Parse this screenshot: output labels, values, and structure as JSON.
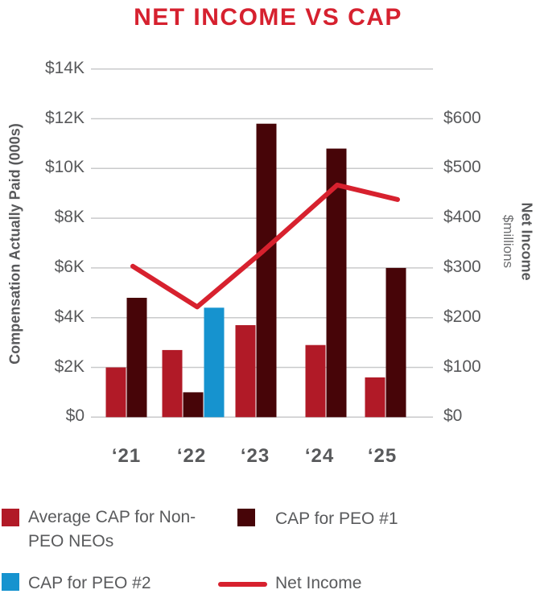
{
  "title": {
    "text": "NET INCOME VS CAP"
  },
  "colors": {
    "title_red": "#D6212F",
    "bar_crimson": "#B11A27",
    "bar_maroon": "#470508",
    "bar_blue": "#1693CF",
    "line_red": "#D7212E",
    "text_gray": "#58595B",
    "grid_gray": "#C9CACB"
  },
  "chart_data": {
    "type": "bar",
    "subtype": "grouped-bars-with-line-overlay",
    "categories": [
      "‘21",
      "‘22",
      "‘23",
      "‘24",
      "‘25"
    ],
    "series": [
      {
        "name": "Average CAP for Non-PEO NEOs",
        "type": "bar",
        "axis": "left",
        "color": "#B11A27",
        "values": [
          2.0,
          2.7,
          3.7,
          2.9,
          1.6
        ]
      },
      {
        "name": "CAP for PEO #1",
        "type": "bar",
        "axis": "left",
        "color": "#470508",
        "values": [
          4.8,
          1.0,
          11.8,
          10.8,
          6.0
        ]
      },
      {
        "name": "CAP for PEO #2",
        "type": "bar",
        "axis": "left",
        "color": "#1693CF",
        "values": [
          null,
          4.4,
          null,
          null,
          null
        ]
      },
      {
        "name": "Net Income",
        "type": "line",
        "axis": "right",
        "color": "#D7212E",
        "values": [
          260,
          190,
          285,
          400,
          375
        ]
      }
    ],
    "left_axis": {
      "title": "Compensation Actually Paid (000s)",
      "min": 0,
      "max": 14,
      "tick_step": 2,
      "tick_labels": [
        "$0",
        "$2K",
        "$4K",
        "$6K",
        "$8K",
        "$10K",
        "$12K",
        "$14K"
      ],
      "units": "thousands of dollars"
    },
    "right_axis": {
      "title": "Net Income",
      "subtitle": "$millions",
      "min": 0,
      "max": 600,
      "tick_step": 100,
      "tick_labels": [
        "$0",
        "$100",
        "$200",
        "$300",
        "$400",
        "$500",
        "$600"
      ]
    },
    "grid": true,
    "legend_position": "bottom",
    "title": "NET INCOME VS CAP"
  },
  "legend": {
    "items": [
      {
        "label": "Average CAP for Non-PEO NEOs",
        "swatch": "square",
        "color": "#B11A27"
      },
      {
        "label": "CAP for PEO #1",
        "swatch": "square",
        "color": "#470508"
      },
      {
        "label": "CAP for PEO #2",
        "swatch": "square",
        "color": "#1693CF"
      },
      {
        "label": "Net Income",
        "swatch": "line",
        "color": "#D7212E"
      }
    ]
  }
}
